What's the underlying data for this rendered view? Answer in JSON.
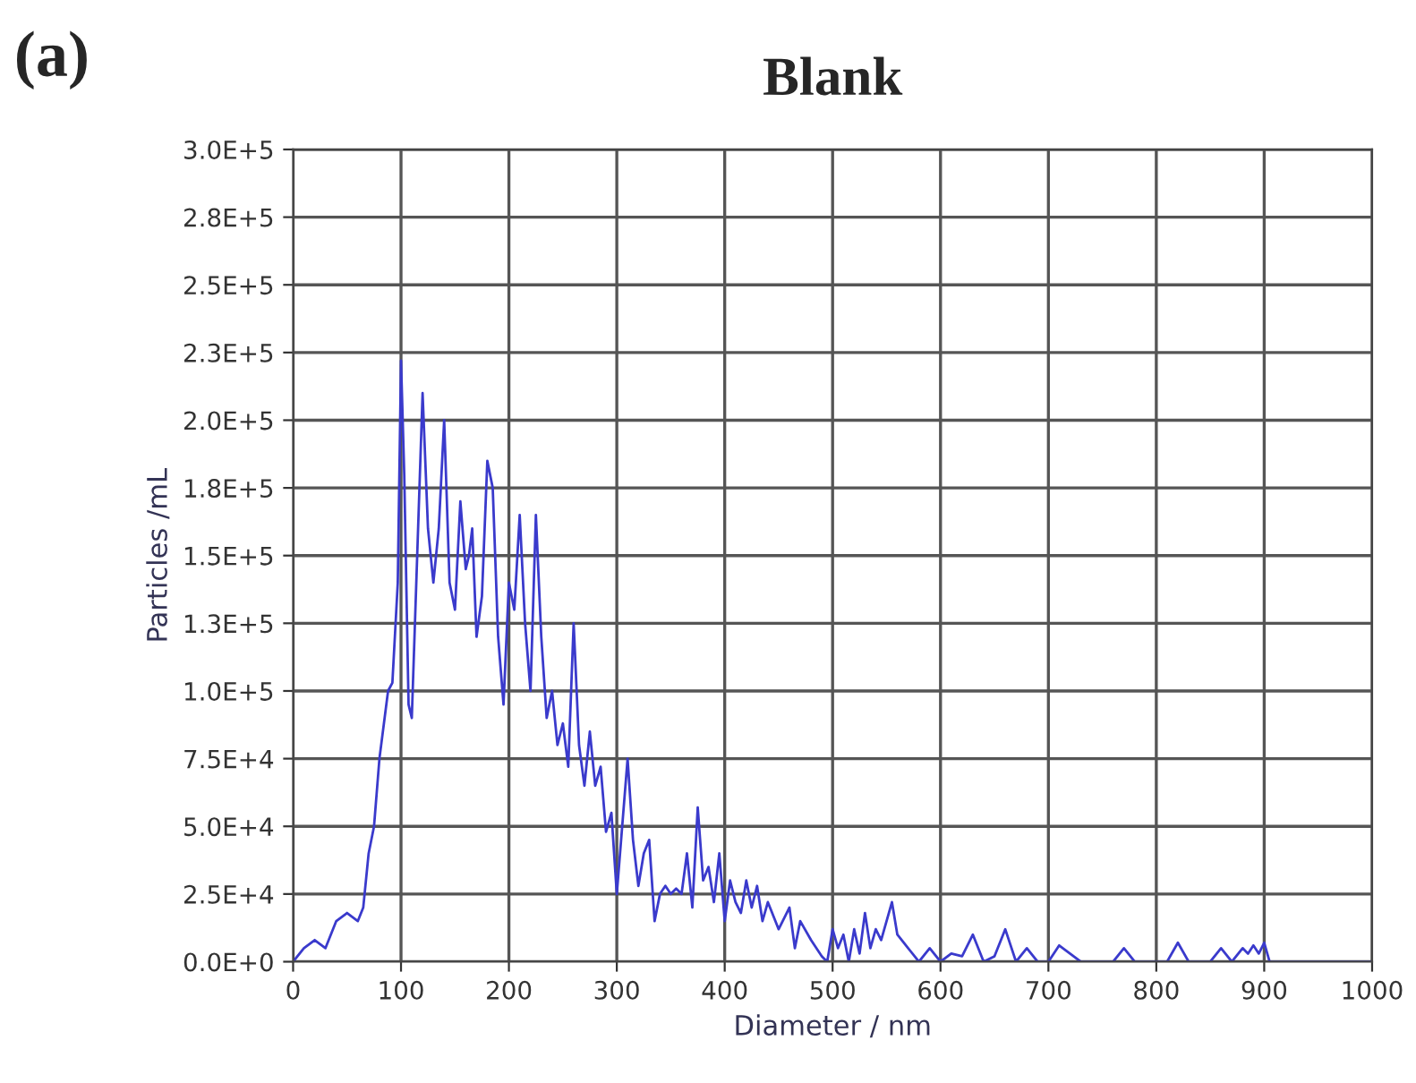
{
  "chart_data": {
    "type": "line",
    "title": "Blank",
    "xlabel": "Diameter / nm",
    "ylabel": "Particles /mL",
    "annotations": [
      "(a)"
    ],
    "x": [
      0,
      10,
      20,
      30,
      40,
      50,
      60,
      65,
      70,
      75,
      80,
      88,
      92,
      97,
      100,
      103,
      107,
      110,
      115,
      120,
      125,
      130,
      135,
      140,
      145,
      150,
      155,
      160,
      163,
      166,
      170,
      175,
      180,
      185,
      190,
      195,
      200,
      205,
      210,
      215,
      220,
      225,
      230,
      235,
      240,
      245,
      250,
      255,
      260,
      265,
      270,
      275,
      280,
      285,
      290,
      295,
      300,
      305,
      310,
      315,
      320,
      325,
      330,
      335,
      340,
      345,
      350,
      355,
      360,
      365,
      370,
      375,
      380,
      385,
      390,
      395,
      400,
      405,
      410,
      415,
      420,
      425,
      430,
      435,
      440,
      450,
      460,
      465,
      470,
      480,
      490,
      495,
      500,
      505,
      510,
      515,
      520,
      525,
      530,
      535,
      540,
      545,
      555,
      560,
      570,
      580,
      590,
      600,
      610,
      620,
      630,
      640,
      650,
      660,
      670,
      680,
      690,
      700,
      710,
      720,
      730,
      760,
      770,
      780,
      810,
      820,
      830,
      850,
      860,
      870,
      880,
      885,
      890,
      895,
      900,
      905,
      1000
    ],
    "series": [
      {
        "color": "#3a3acc",
        "values": [
          0,
          5000,
          8000,
          5000,
          15000,
          18000,
          15000,
          20000,
          40000,
          50000,
          75000,
          100000,
          103000,
          140000,
          222000,
          180000,
          95000,
          90000,
          150000,
          210000,
          160000,
          140000,
          160000,
          200000,
          140000,
          130000,
          170000,
          145000,
          150000,
          160000,
          120000,
          135000,
          185000,
          175000,
          120000,
          95000,
          140000,
          130000,
          165000,
          125000,
          100000,
          165000,
          120000,
          90000,
          100000,
          80000,
          88000,
          72000,
          125000,
          80000,
          65000,
          85000,
          65000,
          72000,
          48000,
          55000,
          25000,
          50000,
          75000,
          45000,
          28000,
          40000,
          45000,
          15000,
          25000,
          28000,
          25000,
          27000,
          25000,
          40000,
          20000,
          57000,
          30000,
          35000,
          22000,
          40000,
          15000,
          30000,
          22000,
          18000,
          30000,
          20000,
          28000,
          15000,
          22000,
          12000,
          20000,
          5000,
          15000,
          8000,
          2000,
          0,
          12000,
          5000,
          10000,
          0,
          12000,
          3000,
          18000,
          5000,
          12000,
          8000,
          22000,
          10000,
          5000,
          0,
          5000,
          0,
          3000,
          2000,
          10000,
          0,
          2000,
          12000,
          0,
          5000,
          0,
          0,
          6000,
          3000,
          0,
          0,
          5000,
          0,
          0,
          7000,
          0,
          0,
          5000,
          0,
          5000,
          3000,
          6000,
          3000,
          7000,
          0,
          0
        ]
      }
    ],
    "xlim": [
      0,
      1000
    ],
    "xticks": [
      0,
      100,
      200,
      300,
      400,
      500,
      600,
      700,
      800,
      900,
      1000
    ],
    "ylim": [
      0,
      300000
    ],
    "yticks": [
      {
        "value": 0,
        "label": "0.0E+0"
      },
      {
        "value": 25000,
        "label": "2.5E+4"
      },
      {
        "value": 50000,
        "label": "5.0E+4"
      },
      {
        "value": 75000,
        "label": "7.5E+4"
      },
      {
        "value": 100000,
        "label": "1.0E+5"
      },
      {
        "value": 125000,
        "label": "1.3E+5"
      },
      {
        "value": 150000,
        "label": "1.5E+5"
      },
      {
        "value": 175000,
        "label": "1.8E+5"
      },
      {
        "value": 200000,
        "label": "2.0E+5"
      },
      {
        "value": 225000,
        "label": "2.3E+5"
      },
      {
        "value": 250000,
        "label": "2.5E+5"
      },
      {
        "value": 275000,
        "label": "2.8E+5"
      },
      {
        "value": 300000,
        "label": "3.0E+5"
      }
    ],
    "grid": true,
    "line_style": "solid",
    "marker": "none",
    "legend": false
  }
}
